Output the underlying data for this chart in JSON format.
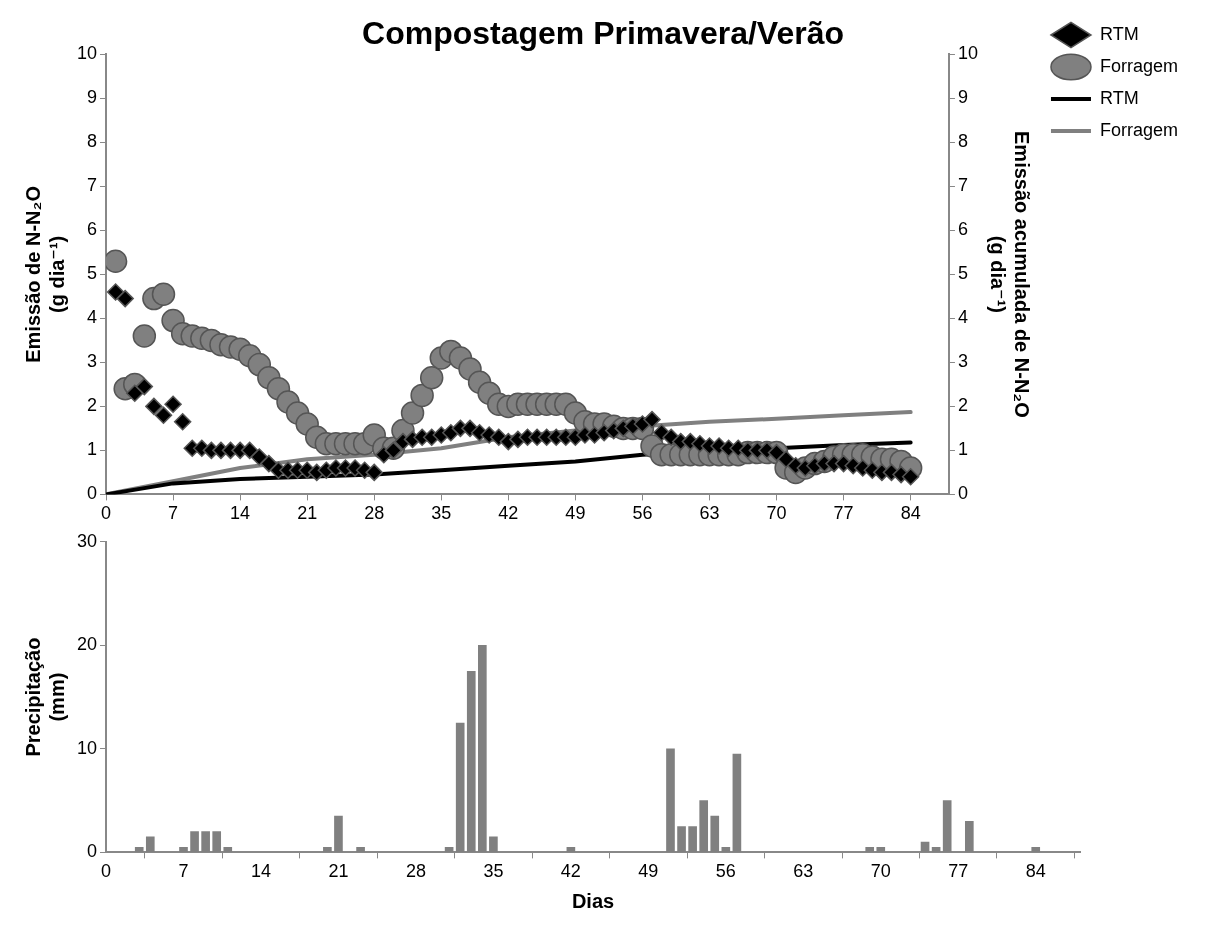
{
  "chart_data": [
    {
      "type": "scatter",
      "title": "Compostagem Primavera/Verão",
      "ylabel": "Emissão de N-N₂O (g dia⁻¹)",
      "y2label": "Emissão acumulada de N-N₂O (g dia⁻¹)",
      "legend": "right",
      "xlim": [
        0,
        88
      ],
      "xticks": [
        0,
        7,
        14,
        21,
        28,
        35,
        42,
        49,
        56,
        63,
        70,
        77,
        84
      ],
      "ylim": [
        0,
        10
      ],
      "yticks": [
        0,
        1,
        2,
        3,
        4,
        5,
        6,
        7,
        8,
        9,
        10
      ],
      "y2lim": [
        0,
        10
      ],
      "y2ticks": [
        0,
        1,
        2,
        3,
        4,
        5,
        6,
        7,
        8,
        9,
        10
      ],
      "x": [
        1,
        2,
        3,
        4,
        5,
        6,
        7,
        8,
        9,
        10,
        11,
        12,
        13,
        14,
        15,
        16,
        17,
        18,
        19,
        20,
        21,
        22,
        23,
        24,
        25,
        26,
        27,
        28,
        29,
        30,
        31,
        32,
        33,
        34,
        35,
        36,
        37,
        38,
        39,
        40,
        41,
        42,
        43,
        44,
        45,
        46,
        47,
        48,
        49,
        50,
        51,
        52,
        53,
        54,
        55,
        56,
        57,
        58,
        59,
        60,
        61,
        62,
        63,
        64,
        65,
        66,
        67,
        68,
        69,
        70,
        71,
        72,
        73,
        74,
        75,
        76,
        77,
        78,
        79,
        80,
        81,
        82,
        83,
        84
      ],
      "series": [
        {
          "name": "RTM",
          "type": "scatter",
          "marker": "diamond",
          "color": "#000000",
          "values": [
            4.6,
            4.45,
            2.3,
            2.45,
            2.0,
            1.8,
            2.05,
            1.65,
            1.05,
            1.05,
            1.0,
            1.0,
            1.0,
            1.0,
            1.0,
            0.85,
            0.7,
            0.55,
            0.55,
            0.55,
            0.55,
            0.5,
            0.55,
            0.6,
            0.6,
            0.6,
            0.55,
            0.5,
            0.9,
            1.0,
            1.2,
            1.25,
            1.3,
            1.3,
            1.35,
            1.4,
            1.5,
            1.5,
            1.4,
            1.35,
            1.3,
            1.2,
            1.25,
            1.3,
            1.3,
            1.3,
            1.3,
            1.3,
            1.3,
            1.35,
            1.35,
            1.4,
            1.45,
            1.5,
            1.55,
            1.6,
            1.7,
            1.4,
            1.3,
            1.2,
            1.2,
            1.15,
            1.1,
            1.1,
            1.05,
            1.05,
            1.0,
            1.0,
            1.0,
            0.95,
            0.8,
            0.65,
            0.6,
            0.65,
            0.7,
            0.7,
            0.7,
            0.65,
            0.6,
            0.55,
            0.5,
            0.5,
            0.45,
            0.4
          ]
        },
        {
          "name": "Forragem",
          "type": "scatter",
          "marker": "circle",
          "color": "#808080",
          "values": [
            5.3,
            2.4,
            2.5,
            3.6,
            4.45,
            4.55,
            3.95,
            3.65,
            3.6,
            3.55,
            3.5,
            3.4,
            3.35,
            3.3,
            3.15,
            2.95,
            2.65,
            2.4,
            2.1,
            1.85,
            1.6,
            1.3,
            1.15,
            1.15,
            1.15,
            1.15,
            1.15,
            1.35,
            1.05,
            1.05,
            1.45,
            1.85,
            2.25,
            2.65,
            3.1,
            3.25,
            3.1,
            2.85,
            2.55,
            2.3,
            2.05,
            2.0,
            2.05,
            2.05,
            2.05,
            2.05,
            2.05,
            2.05,
            1.85,
            1.65,
            1.6,
            1.6,
            1.55,
            1.5,
            1.5,
            1.5,
            1.1,
            0.9,
            0.9,
            0.9,
            0.9,
            0.9,
            0.9,
            0.9,
            0.9,
            0.9,
            0.95,
            0.95,
            0.95,
            0.95,
            0.6,
            0.5,
            0.6,
            0.7,
            0.75,
            0.85,
            0.9,
            0.9,
            0.9,
            0.85,
            0.8,
            0.8,
            0.75,
            0.6
          ]
        },
        {
          "name": "RTM",
          "type": "line",
          "axis": "y2",
          "color": "#000000",
          "x": [
            0,
            7,
            14,
            21,
            28,
            35,
            42,
            49,
            56,
            63,
            70,
            77,
            84
          ],
          "values": [
            0,
            0.25,
            0.35,
            0.4,
            0.45,
            0.55,
            0.65,
            0.75,
            0.9,
            1.0,
            1.05,
            1.12,
            1.18
          ]
        },
        {
          "name": "Forragem",
          "type": "line",
          "axis": "y2",
          "color": "#808080",
          "x": [
            0,
            7,
            14,
            21,
            28,
            35,
            42,
            49,
            56,
            63,
            70,
            77,
            84
          ],
          "values": [
            0,
            0.3,
            0.6,
            0.8,
            0.9,
            1.05,
            1.3,
            1.45,
            1.55,
            1.65,
            1.72,
            1.8,
            1.87
          ]
        }
      ]
    },
    {
      "type": "bar",
      "xlabel": "Dias",
      "ylabel": "Precipitação (mm)",
      "color": "#808080",
      "xlim": [
        0,
        88
      ],
      "xticks": [
        0,
        7,
        14,
        21,
        28,
        35,
        42,
        49,
        56,
        63,
        70,
        77,
        84
      ],
      "ylim": [
        0,
        30
      ],
      "yticks": [
        0,
        10,
        20,
        30
      ],
      "x": [
        3,
        4,
        7,
        8,
        9,
        10,
        11,
        20,
        21,
        23,
        31,
        32,
        33,
        34,
        35,
        42,
        51,
        52,
        53,
        54,
        55,
        56,
        57,
        69,
        70,
        74,
        75,
        76,
        78,
        84
      ],
      "values": [
        0.5,
        1.5,
        0.5,
        2,
        2,
        2,
        0.5,
        0.5,
        3.5,
        0.5,
        0.5,
        12.5,
        17.5,
        20,
        1.5,
        0.5,
        10,
        2.5,
        2.5,
        5,
        3.5,
        0.5,
        9.5,
        0.5,
        0.5,
        1,
        0.5,
        5,
        3,
        0.5
      ]
    }
  ]
}
